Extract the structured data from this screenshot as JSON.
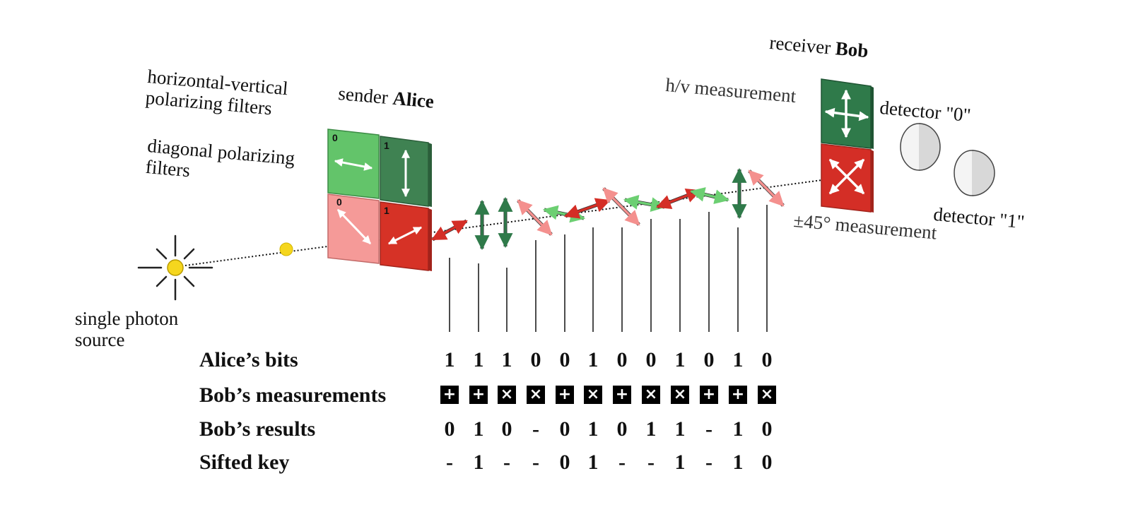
{
  "labels": {
    "source": [
      "single photon",
      "source"
    ],
    "hv_filters": [
      "horizontal-vertical",
      "polarizing filters"
    ],
    "diag_filters": [
      "diagonal polarizing",
      "filters"
    ],
    "sender_prefix": "sender",
    "sender_name": "Alice",
    "receiver_prefix": "receiver",
    "receiver_name": "Bob",
    "hv_measurement": "h/v measurement",
    "diag_measurement": "±45° measurement",
    "detector0": "detector \"0\"",
    "detector1": "detector \"1\""
  },
  "filter_labels": {
    "hv0": "0",
    "hv1": "1",
    "d0": "0",
    "d1": "1"
  },
  "colors": {
    "hv_light": "#63c46a",
    "hv_dark": "#3f8252",
    "diag_light": "#f59a98",
    "diag_dark": "#d63226",
    "bob_hv": "#2f7a4a",
    "bob_diag": "#d42e26",
    "photon": "#f5d61e",
    "arrow_green": "#2f7a4a",
    "arrow_red": "#d42e26",
    "arrow_lightgreen": "#6ccf72",
    "arrow_pink": "#f4908e"
  },
  "photons": [
    "red-diag",
    "green-vert",
    "green-vert",
    "pink-diag",
    "green-horiz",
    "red-diag",
    "pink-diag",
    "green-horiz",
    "red-diag",
    "green-horiz",
    "green-vert",
    "pink-diag"
  ],
  "table": {
    "row_labels": [
      "Alice’s bits",
      "Bob’s measurements",
      "Bob’s results",
      "Sifted key"
    ],
    "alice_bits": [
      "1",
      "1",
      "1",
      "0",
      "0",
      "1",
      "0",
      "0",
      "1",
      "0",
      "1",
      "0"
    ],
    "bob_measurements": [
      "+",
      "+",
      "×",
      "×",
      "+",
      "×",
      "+",
      "×",
      "×",
      "+",
      "+",
      "×"
    ],
    "bob_results": [
      "0",
      "1",
      "0",
      "-",
      "0",
      "1",
      "0",
      "1",
      "1",
      "-",
      "1",
      "0"
    ],
    "sifted_key": [
      "-",
      "1",
      "-",
      "-",
      "0",
      "1",
      "-",
      "-",
      "1",
      "-",
      "1",
      "0"
    ]
  }
}
